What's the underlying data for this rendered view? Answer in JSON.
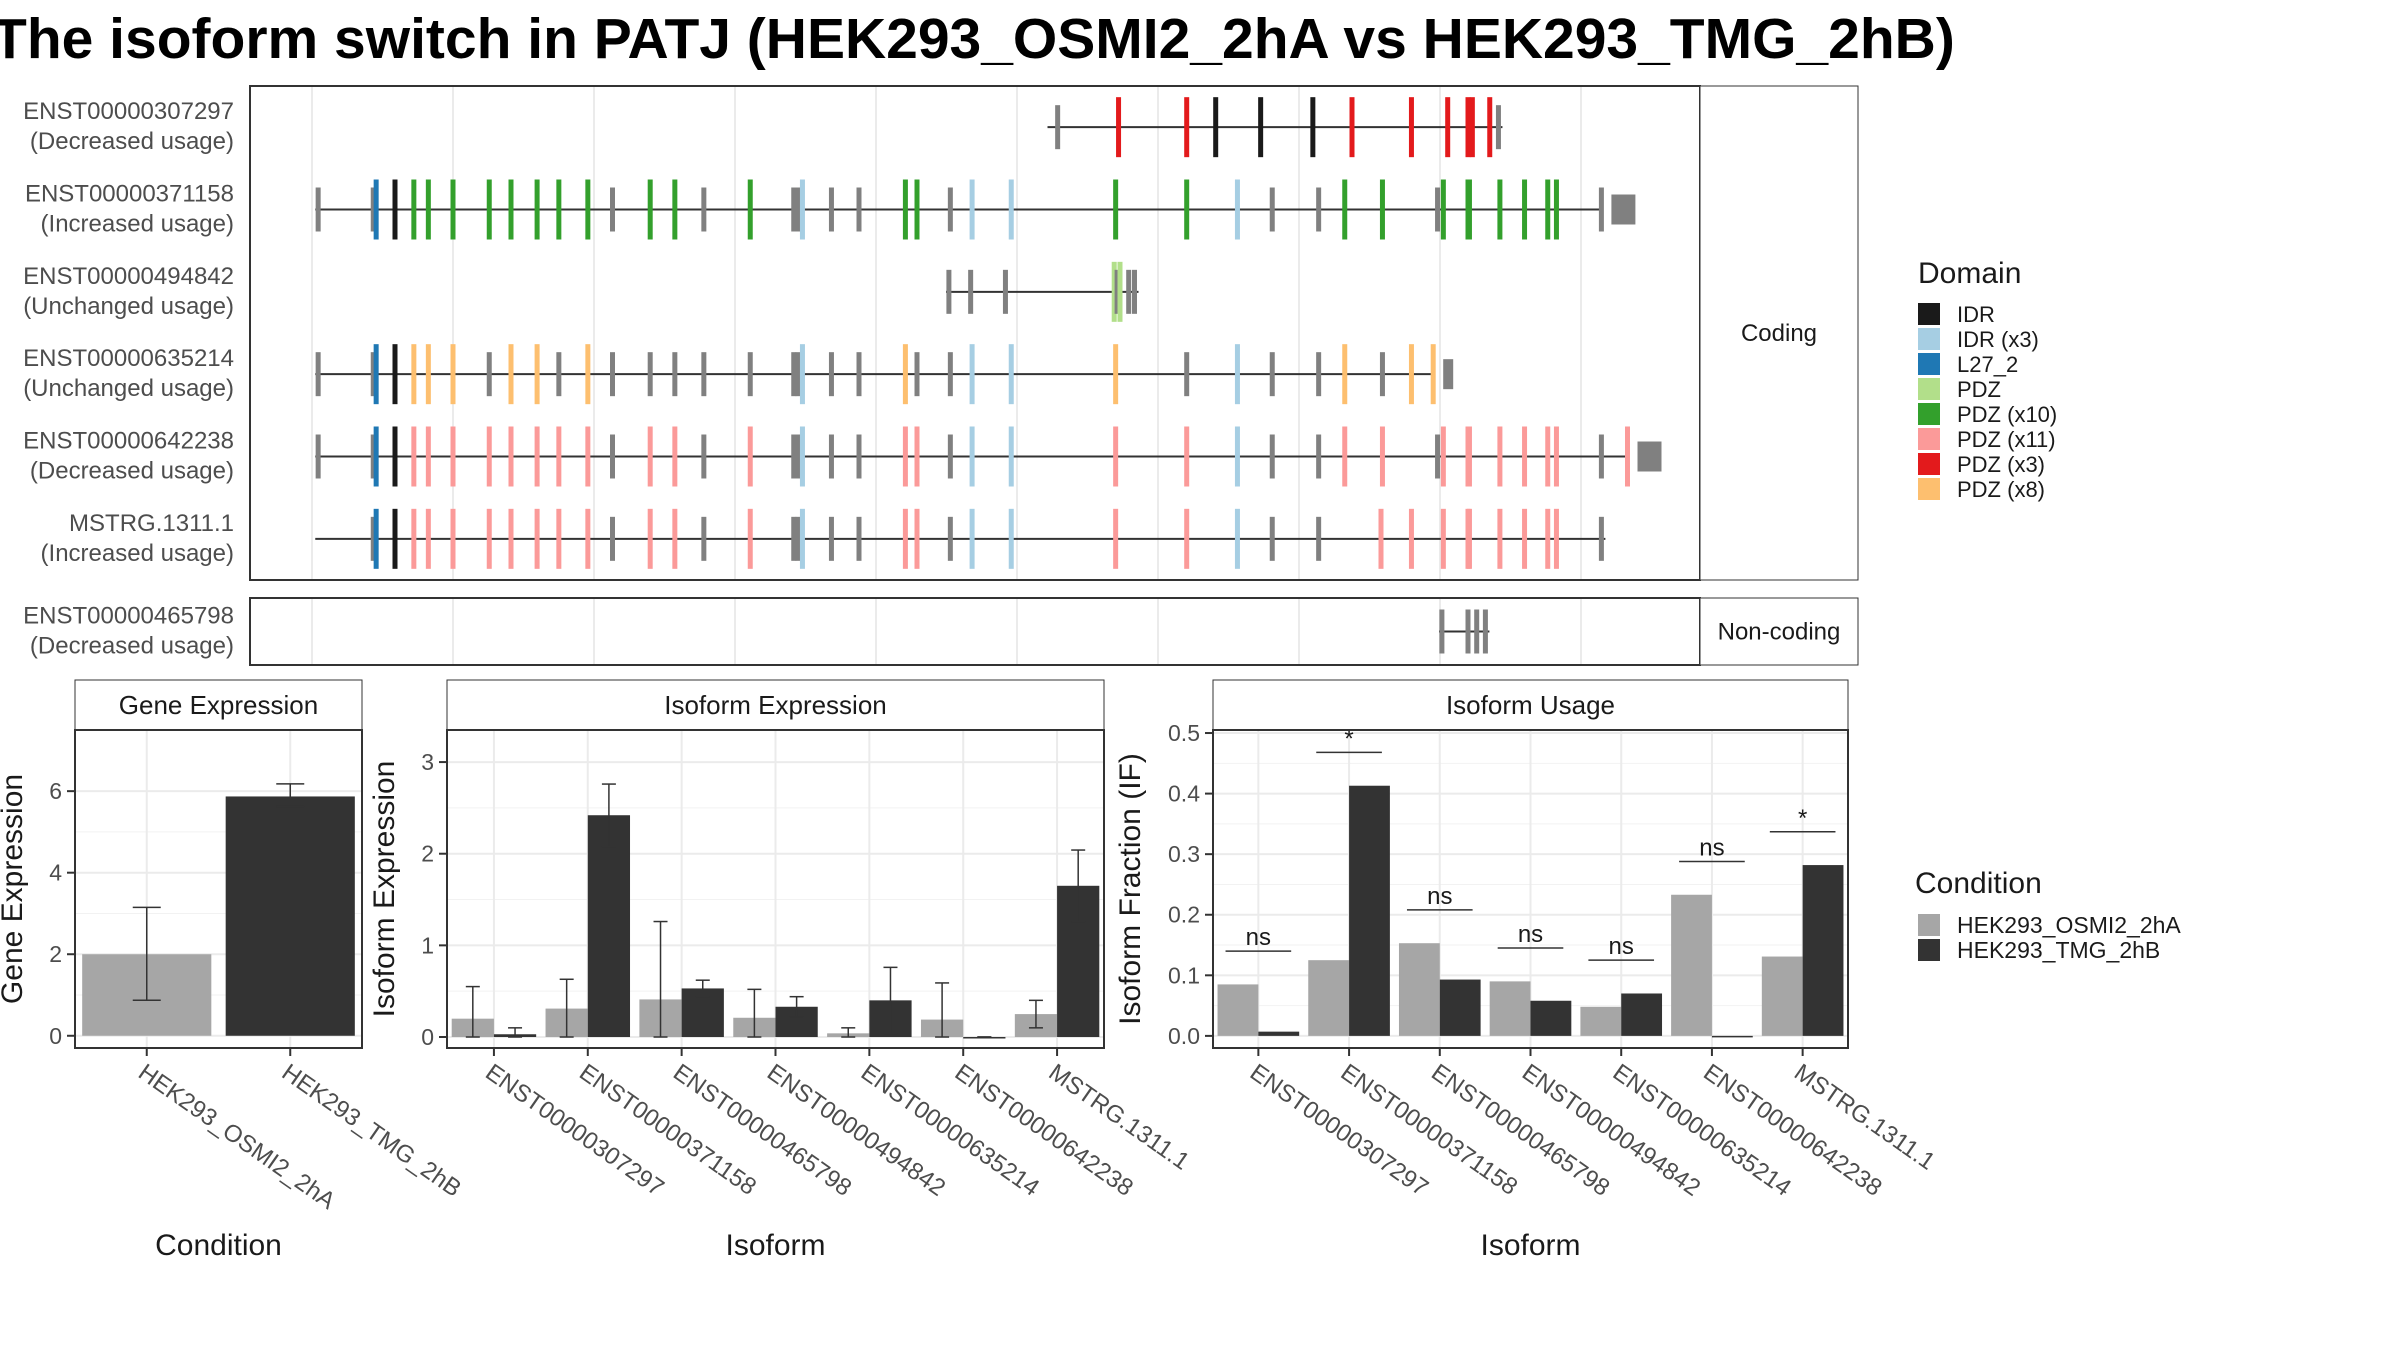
{
  "title": "The isoform switch in PATJ (HEK293_OSMI2_2hA vs HEK293_TMG_2hB)",
  "colors": {
    "IDR": "#1a1a1a",
    "IDR (x3)": "#a6cee3",
    "L27_2": "#1f78b4",
    "PDZ": "#b2df8a",
    "PDZ (x10)": "#33a02c",
    "PDZ (x11)": "#fb9a99",
    "PDZ (x3)": "#e31a1c",
    "PDZ (x8)": "#fdbf6f",
    "none": "#808080",
    "cond_A": "#a6a6a6",
    "cond_B": "#333333"
  },
  "structure": {
    "coding_strip": "Coding",
    "noncoding_strip": "Non-coding",
    "legend_title": "Domain",
    "legend_items": [
      "IDR",
      "IDR (x3)",
      "L27_2",
      "PDZ",
      "PDZ (x10)",
      "PDZ (x11)",
      "PDZ (x3)",
      "PDZ (x8)"
    ],
    "coding": [
      {
        "id": "ENST00000307297",
        "usage": "(Decreased usage)",
        "span": [
          0.55,
          0.85
        ],
        "exons": [
          [
            0.557,
            "none"
          ],
          [
            0.599,
            "PDZ (x3)"
          ],
          [
            0.646,
            "PDZ (x3)"
          ],
          [
            0.666,
            "IDR"
          ],
          [
            0.697,
            "IDR"
          ],
          [
            0.733,
            "IDR"
          ],
          [
            0.76,
            "PDZ (x3)"
          ],
          [
            0.801,
            "PDZ (x3)"
          ],
          [
            0.826,
            "PDZ (x3)"
          ],
          [
            0.84,
            "PDZ (x3)"
          ],
          [
            0.843,
            "PDZ (x3)"
          ],
          [
            0.855,
            "PDZ (x3)"
          ],
          [
            0.861,
            "none"
          ]
        ],
        "end_box": false
      },
      {
        "id": "ENST00000371158",
        "usage": "(Increased usage)",
        "span": [
          0.045,
          0.97
        ],
        "exons": [
          [
            0.047,
            "none"
          ],
          [
            0.085,
            "none"
          ],
          [
            0.087,
            "L27_2"
          ],
          [
            0.1,
            "IDR"
          ],
          [
            0.113,
            "PDZ (x10)"
          ],
          [
            0.123,
            "PDZ (x10)"
          ],
          [
            0.14,
            "PDZ (x10)"
          ],
          [
            0.165,
            "PDZ (x10)"
          ],
          [
            0.18,
            "PDZ (x10)"
          ],
          [
            0.198,
            "PDZ (x10)"
          ],
          [
            0.213,
            "PDZ (x10)"
          ],
          [
            0.233,
            "PDZ (x10)"
          ],
          [
            0.25,
            "none"
          ],
          [
            0.276,
            "PDZ (x10)"
          ],
          [
            0.293,
            "PDZ (x10)"
          ],
          [
            0.313,
            "none"
          ],
          [
            0.345,
            "PDZ (x10)"
          ],
          [
            0.375,
            "none"
          ],
          [
            0.378,
            "none"
          ],
          [
            0.381,
            "IDR (x3)"
          ],
          [
            0.401,
            "none"
          ],
          [
            0.42,
            "none"
          ],
          [
            0.452,
            "PDZ (x10)"
          ],
          [
            0.46,
            "PDZ (x10)"
          ],
          [
            0.483,
            "none"
          ],
          [
            0.498,
            "IDR (x3)"
          ],
          [
            0.525,
            "IDR (x3)"
          ],
          [
            0.597,
            "PDZ (x10)"
          ],
          [
            0.646,
            "PDZ (x10)"
          ],
          [
            0.681,
            "IDR (x3)"
          ],
          [
            0.705,
            "none"
          ],
          [
            0.737,
            "none"
          ],
          [
            0.755,
            "PDZ (x10)"
          ],
          [
            0.781,
            "PDZ (x10)"
          ],
          [
            0.819,
            "none"
          ],
          [
            0.823,
            "PDZ (x10)"
          ],
          [
            0.84,
            "PDZ (x10)"
          ],
          [
            0.841,
            "PDZ (x10)"
          ],
          [
            0.862,
            "PDZ (x10)"
          ],
          [
            0.879,
            "PDZ (x10)"
          ],
          [
            0.895,
            "PDZ (x10)"
          ],
          [
            0.901,
            "PDZ (x10)"
          ],
          [
            0.932,
            "none"
          ]
        ],
        "end_box": true
      },
      {
        "id": "ENST00000494842",
        "usage": "(Unchanged usage)",
        "span": [
          0.48,
          0.61
        ],
        "exons": [
          [
            0.482,
            "none"
          ],
          [
            0.497,
            "none"
          ],
          [
            0.521,
            "none"
          ],
          [
            0.596,
            "PDZ"
          ],
          [
            0.598,
            "none"
          ],
          [
            0.6,
            "PDZ"
          ],
          [
            0.606,
            "none"
          ],
          [
            0.61,
            "none"
          ]
        ],
        "end_box": false
      },
      {
        "id": "ENST00000635214",
        "usage": "(Unchanged usage)",
        "span": [
          0.045,
          0.82
        ],
        "exons": [
          [
            0.047,
            "none"
          ],
          [
            0.085,
            "none"
          ],
          [
            0.087,
            "L27_2"
          ],
          [
            0.1,
            "IDR"
          ],
          [
            0.113,
            "PDZ (x8)"
          ],
          [
            0.123,
            "PDZ (x8)"
          ],
          [
            0.14,
            "PDZ (x8)"
          ],
          [
            0.165,
            "none"
          ],
          [
            0.18,
            "PDZ (x8)"
          ],
          [
            0.198,
            "PDZ (x8)"
          ],
          [
            0.213,
            "none"
          ],
          [
            0.233,
            "PDZ (x8)"
          ],
          [
            0.25,
            "none"
          ],
          [
            0.276,
            "none"
          ],
          [
            0.293,
            "none"
          ],
          [
            0.313,
            "none"
          ],
          [
            0.345,
            "none"
          ],
          [
            0.375,
            "none"
          ],
          [
            0.378,
            "none"
          ],
          [
            0.381,
            "IDR (x3)"
          ],
          [
            0.401,
            "none"
          ],
          [
            0.42,
            "none"
          ],
          [
            0.452,
            "PDZ (x8)"
          ],
          [
            0.46,
            "none"
          ],
          [
            0.483,
            "none"
          ],
          [
            0.498,
            "IDR (x3)"
          ],
          [
            0.525,
            "IDR (x3)"
          ],
          [
            0.597,
            "PDZ (x8)"
          ],
          [
            0.646,
            "none"
          ],
          [
            0.681,
            "IDR (x3)"
          ],
          [
            0.705,
            "none"
          ],
          [
            0.737,
            "none"
          ],
          [
            0.755,
            "PDZ (x8)"
          ],
          [
            0.781,
            "none"
          ],
          [
            0.801,
            "PDZ (x8)"
          ],
          [
            0.816,
            "PDZ (x8)"
          ]
        ],
        "end_box": true
      },
      {
        "id": "ENST00000642238",
        "usage": "(Decreased usage)",
        "span": [
          0.045,
          0.97
        ],
        "exons": [
          [
            0.047,
            "none"
          ],
          [
            0.085,
            "none"
          ],
          [
            0.087,
            "L27_2"
          ],
          [
            0.1,
            "IDR"
          ],
          [
            0.113,
            "PDZ (x11)"
          ],
          [
            0.123,
            "PDZ (x11)"
          ],
          [
            0.14,
            "PDZ (x11)"
          ],
          [
            0.165,
            "PDZ (x11)"
          ],
          [
            0.18,
            "PDZ (x11)"
          ],
          [
            0.198,
            "PDZ (x11)"
          ],
          [
            0.213,
            "PDZ (x11)"
          ],
          [
            0.233,
            "PDZ (x11)"
          ],
          [
            0.25,
            "none"
          ],
          [
            0.276,
            "PDZ (x11)"
          ],
          [
            0.293,
            "PDZ (x11)"
          ],
          [
            0.313,
            "none"
          ],
          [
            0.345,
            "PDZ (x11)"
          ],
          [
            0.375,
            "none"
          ],
          [
            0.378,
            "none"
          ],
          [
            0.381,
            "IDR (x3)"
          ],
          [
            0.401,
            "none"
          ],
          [
            0.42,
            "none"
          ],
          [
            0.452,
            "PDZ (x11)"
          ],
          [
            0.46,
            "PDZ (x11)"
          ],
          [
            0.483,
            "none"
          ],
          [
            0.498,
            "IDR (x3)"
          ],
          [
            0.525,
            "IDR (x3)"
          ],
          [
            0.597,
            "PDZ (x11)"
          ],
          [
            0.646,
            "PDZ (x11)"
          ],
          [
            0.681,
            "IDR (x3)"
          ],
          [
            0.705,
            "none"
          ],
          [
            0.737,
            "none"
          ],
          [
            0.755,
            "PDZ (x11)"
          ],
          [
            0.781,
            "PDZ (x11)"
          ],
          [
            0.819,
            "none"
          ],
          [
            0.823,
            "PDZ (x11)"
          ],
          [
            0.84,
            "PDZ (x11)"
          ],
          [
            0.841,
            "PDZ (x11)"
          ],
          [
            0.862,
            "PDZ (x11)"
          ],
          [
            0.879,
            "PDZ (x11)"
          ],
          [
            0.895,
            "PDZ (x11)"
          ],
          [
            0.901,
            "PDZ (x11)"
          ],
          [
            0.932,
            "none"
          ],
          [
            0.95,
            "PDZ (x11)"
          ]
        ],
        "end_box": true
      },
      {
        "id": "MSTRG.1311.1",
        "usage": "(Increased usage)",
        "span": [
          0.045,
          0.96
        ],
        "exons": [
          [
            0.085,
            "none"
          ],
          [
            0.087,
            "L27_2"
          ],
          [
            0.1,
            "IDR"
          ],
          [
            0.113,
            "PDZ (x11)"
          ],
          [
            0.123,
            "PDZ (x11)"
          ],
          [
            0.14,
            "PDZ (x11)"
          ],
          [
            0.165,
            "PDZ (x11)"
          ],
          [
            0.18,
            "PDZ (x11)"
          ],
          [
            0.198,
            "PDZ (x11)"
          ],
          [
            0.213,
            "PDZ (x11)"
          ],
          [
            0.233,
            "PDZ (x11)"
          ],
          [
            0.25,
            "none"
          ],
          [
            0.276,
            "PDZ (x11)"
          ],
          [
            0.293,
            "PDZ (x11)"
          ],
          [
            0.313,
            "none"
          ],
          [
            0.345,
            "PDZ (x11)"
          ],
          [
            0.375,
            "none"
          ],
          [
            0.378,
            "none"
          ],
          [
            0.381,
            "IDR (x3)"
          ],
          [
            0.401,
            "none"
          ],
          [
            0.42,
            "none"
          ],
          [
            0.452,
            "PDZ (x11)"
          ],
          [
            0.46,
            "PDZ (x11)"
          ],
          [
            0.483,
            "none"
          ],
          [
            0.498,
            "IDR (x3)"
          ],
          [
            0.525,
            "IDR (x3)"
          ],
          [
            0.597,
            "PDZ (x11)"
          ],
          [
            0.646,
            "PDZ (x11)"
          ],
          [
            0.681,
            "IDR (x3)"
          ],
          [
            0.705,
            "none"
          ],
          [
            0.737,
            "none"
          ],
          [
            0.78,
            "PDZ (x11)"
          ],
          [
            0.801,
            "PDZ (x11)"
          ],
          [
            0.823,
            "PDZ (x11)"
          ],
          [
            0.84,
            "PDZ (x11)"
          ],
          [
            0.841,
            "PDZ (x11)"
          ],
          [
            0.862,
            "PDZ (x11)"
          ],
          [
            0.879,
            "PDZ (x11)"
          ],
          [
            0.895,
            "PDZ (x11)"
          ],
          [
            0.901,
            "PDZ (x11)"
          ],
          [
            0.932,
            "none"
          ]
        ],
        "end_box": false
      },
      {
        "_unused": true
      }
    ],
    "noncoding": [
      {
        "id": "ENST00000465798",
        "usage": "(Decreased usage)",
        "span": [
          0.82,
          0.86
        ],
        "exons": [
          [
            0.822,
            "none"
          ],
          [
            0.84,
            "none"
          ],
          [
            0.846,
            "none"
          ],
          [
            0.852,
            "none"
          ]
        ],
        "end_box": false
      }
    ]
  },
  "chart_data": [
    {
      "type": "bar",
      "title": "Gene Expression",
      "xlabel": "Condition",
      "ylabel": "Gene Expression",
      "categories": [
        "HEK293_OSMI2_2hA",
        "HEK293_TMG_2hB"
      ],
      "values": [
        2.0,
        5.87
      ],
      "errors": [
        [
          0.87,
          3.15
        ],
        [
          5.62,
          6.18
        ]
      ],
      "ylim": [
        -0.3,
        7.5
      ],
      "yticks": [
        0,
        2,
        4,
        6
      ]
    },
    {
      "type": "bar",
      "title": "Isoform Expression",
      "xlabel": "Isoform",
      "ylabel": "Isoform Expression",
      "categories": [
        "ENST00000307297",
        "ENST00000371158",
        "ENST00000465798",
        "ENST00000494842",
        "ENST00000635214",
        "ENST00000642238",
        "MSTRG.1311.1"
      ],
      "series": [
        {
          "name": "HEK293_OSMI2_2hA",
          "values": [
            0.2,
            0.31,
            0.41,
            0.21,
            0.04,
            0.19,
            0.25
          ],
          "errors": [
            [
              0.0,
              0.55
            ],
            [
              0.0,
              0.63
            ],
            [
              0.0,
              1.26
            ],
            [
              0.0,
              0.52
            ],
            [
              0.0,
              0.1
            ],
            [
              0.0,
              0.59
            ],
            [
              0.1,
              0.4
            ]
          ]
        },
        {
          "name": "HEK293_TMG_2hB",
          "values": [
            0.03,
            2.42,
            0.53,
            0.33,
            0.4,
            0.0,
            1.65
          ],
          "errors": [
            [
              0.0,
              0.1
            ],
            [
              2.08,
              2.76
            ],
            [
              0.44,
              0.62
            ],
            [
              0.22,
              0.44
            ],
            [
              0.04,
              0.76
            ],
            [
              0.0,
              0.0
            ],
            [
              1.26,
              2.04
            ]
          ]
        }
      ],
      "ylim": [
        -0.12,
        3.35
      ],
      "yticks": [
        0,
        1,
        2,
        3
      ]
    },
    {
      "type": "bar",
      "title": "Isoform Usage",
      "xlabel": "Isoform",
      "ylabel": "Isoform Fraction (IF)",
      "categories": [
        "ENST00000307297",
        "ENST00000371158",
        "ENST00000465798",
        "ENST00000494842",
        "ENST00000635214",
        "ENST00000642238",
        "MSTRG.1311.1"
      ],
      "series": [
        {
          "name": "HEK293_OSMI2_2hA",
          "values": [
            0.085,
            0.125,
            0.153,
            0.09,
            0.048,
            0.233,
            0.131
          ]
        },
        {
          "name": "HEK293_TMG_2hB",
          "values": [
            0.007,
            0.413,
            0.093,
            0.058,
            0.07,
            0.0,
            0.282
          ]
        }
      ],
      "significance": [
        "ns",
        "*",
        "ns",
        "ns",
        "ns",
        "ns",
        "*"
      ],
      "ylim": [
        -0.02,
        0.505
      ],
      "yticks": [
        0.0,
        0.1,
        0.2,
        0.3,
        0.4,
        0.5
      ]
    }
  ],
  "legend_condition": {
    "title": "Condition",
    "items": [
      "HEK293_OSMI2_2hA",
      "HEK293_TMG_2hB"
    ]
  }
}
